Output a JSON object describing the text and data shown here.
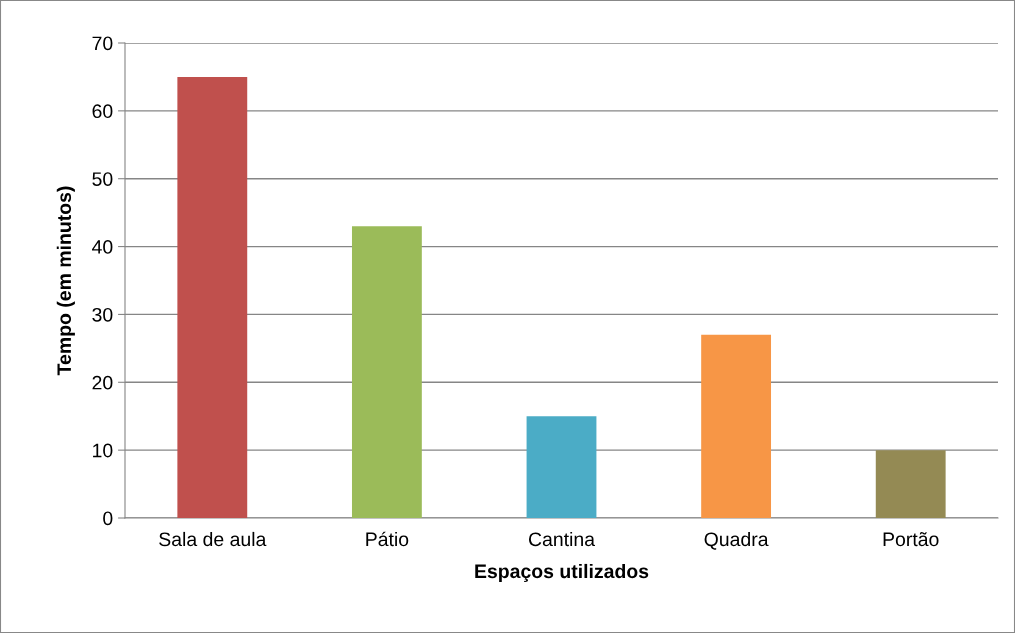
{
  "chart_data": {
    "type": "bar",
    "xlabel": "Espaços utilizados",
    "ylabel": "Tempo (em minutos)",
    "categories": [
      "Sala de aula",
      "Pátio",
      "Cantina",
      "Quadra",
      "Portão"
    ],
    "values": [
      65,
      43,
      15,
      27,
      10
    ],
    "colors": [
      "#c0504d",
      "#9bbb59",
      "#4bacc6",
      "#f79646",
      "#948a54"
    ],
    "ylim": [
      0,
      70
    ],
    "yticks": [
      0,
      10,
      20,
      30,
      40,
      50,
      60,
      70
    ],
    "grid": "y",
    "legend": false
  }
}
